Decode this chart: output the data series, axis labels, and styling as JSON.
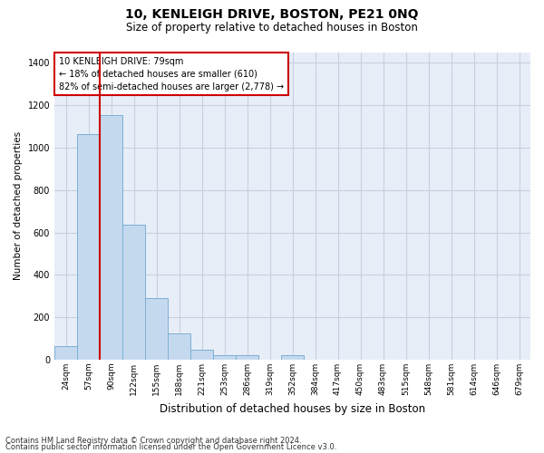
{
  "title_line1": "10, KENLEIGH DRIVE, BOSTON, PE21 0NQ",
  "title_line2": "Size of property relative to detached houses in Boston",
  "xlabel": "Distribution of detached houses by size in Boston",
  "ylabel": "Number of detached properties",
  "categories": [
    "24sqm",
    "57sqm",
    "90sqm",
    "122sqm",
    "155sqm",
    "188sqm",
    "221sqm",
    "253sqm",
    "286sqm",
    "319sqm",
    "352sqm",
    "384sqm",
    "417sqm",
    "450sqm",
    "483sqm",
    "515sqm",
    "548sqm",
    "581sqm",
    "614sqm",
    "646sqm",
    "679sqm"
  ],
  "values": [
    65,
    1065,
    1155,
    635,
    290,
    125,
    48,
    20,
    20,
    0,
    20,
    0,
    0,
    0,
    0,
    0,
    0,
    0,
    0,
    0,
    0
  ],
  "bar_color": "#c5d9ee",
  "bar_edge_color": "#7ab0d4",
  "grid_color": "#c8d0e0",
  "bg_color": "#e8eef8",
  "vline_color": "#cc0000",
  "vline_x": 2.0,
  "annotation_text": "10 KENLEIGH DRIVE: 79sqm\n← 18% of detached houses are smaller (610)\n82% of semi-detached houses are larger (2,778) →",
  "annotation_box_edge": "#cc0000",
  "footer_line1": "Contains HM Land Registry data © Crown copyright and database right 2024.",
  "footer_line2": "Contains public sector information licensed under the Open Government Licence v3.0.",
  "ylim_max": 1450,
  "yticks": [
    0,
    200,
    400,
    600,
    800,
    1000,
    1200,
    1400
  ],
  "title1_fontsize": 10,
  "title2_fontsize": 8.5,
  "ylabel_fontsize": 7.5,
  "xlabel_fontsize": 8.5,
  "tick_fontsize": 6.5,
  "ytick_fontsize": 7,
  "ann_fontsize": 7,
  "footer_fontsize": 6
}
